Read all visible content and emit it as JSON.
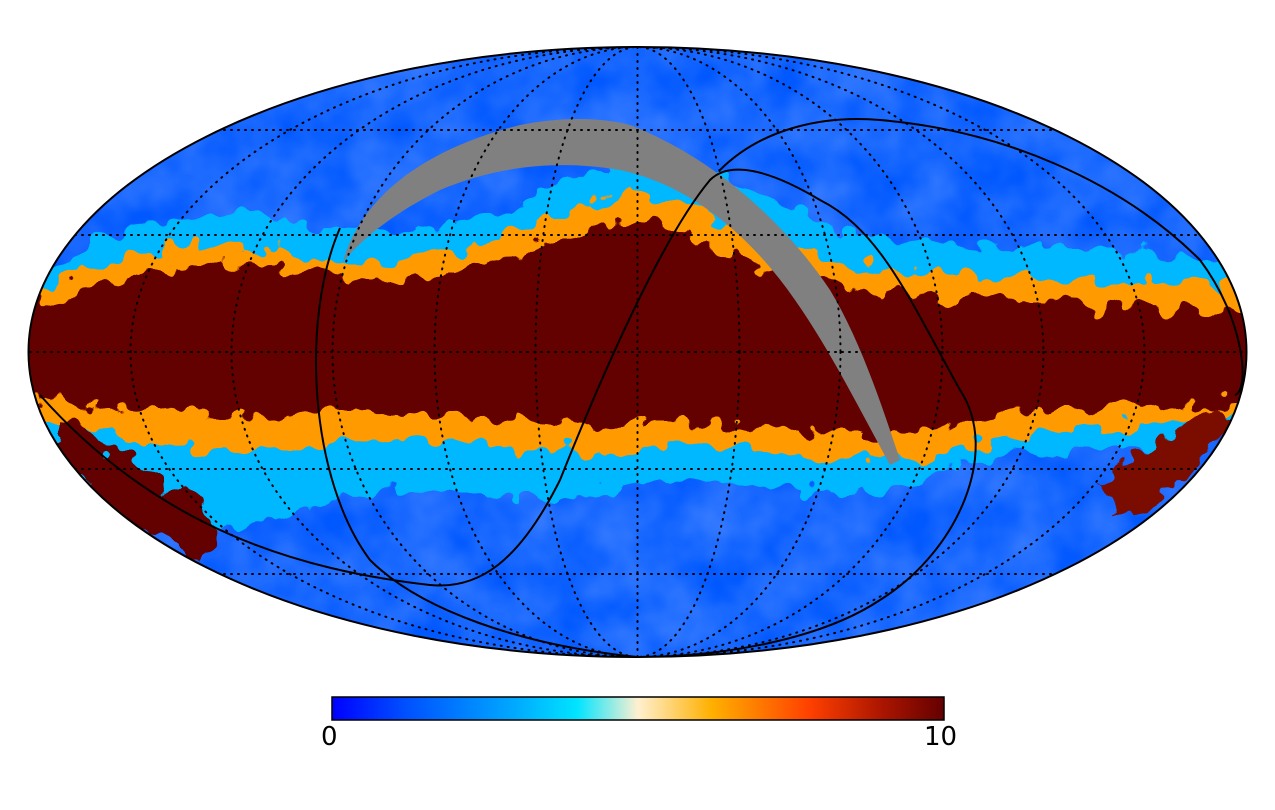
{
  "figure": {
    "projection": "mollweide",
    "content": "all-sky map",
    "masked_region_color": "#808080"
  },
  "colorbar": {
    "min_label": "0",
    "max_label": "10",
    "range": [
      0,
      10
    ],
    "colormap_stops": [
      "#0000ff",
      "#0050ff",
      "#00aaff",
      "#00e4ff",
      "#fff0d0",
      "#ffb000",
      "#ff4000",
      "#aa1500",
      "#640000"
    ]
  },
  "graticule": {
    "style": "dotted",
    "color": "#000000"
  },
  "overlay_curves": {
    "count": 2,
    "color": "#000000"
  }
}
